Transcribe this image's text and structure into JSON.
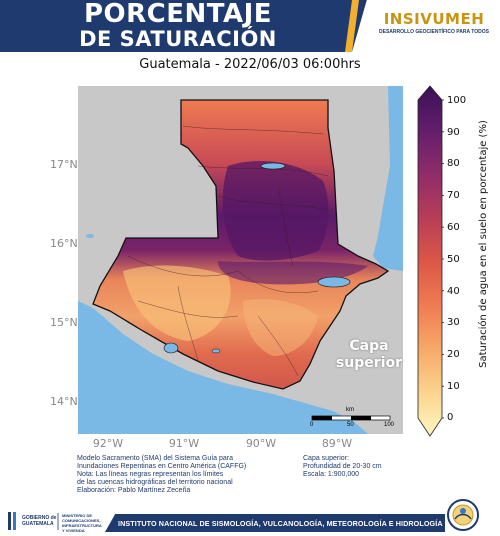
{
  "header": {
    "title_line1": "PORCENTAJE",
    "title_line2": "DE SATURACIÓN",
    "logo_name": "INSIVUMEH",
    "logo_tagline": "DESARROLLO GEOCIENTÍFICO PARA TODOS"
  },
  "map": {
    "title": "Guatemala - 2022/06/03  06:00hrs",
    "layer_label_line1": "Capa",
    "layer_label_line2": "superior",
    "lat_labels": [
      "17°N",
      "16°N",
      "15°N",
      "14°N"
    ],
    "lon_labels": [
      "92°W",
      "91°W",
      "90°W",
      "89°W"
    ],
    "scale_bar": {
      "unit": "km",
      "ticks": [
        "0",
        "50",
        "100"
      ]
    },
    "colors": {
      "land_outside": "#c8c8c8",
      "water": "#7ab8e6",
      "border": "#111111"
    }
  },
  "colorbar": {
    "label": "Saturación de agua en el suelo en porcentaje (%)",
    "ticks": [
      "100",
      "90",
      "80",
      "70",
      "60",
      "50",
      "40",
      "30",
      "20",
      "10",
      "0"
    ],
    "range": [
      0,
      100
    ],
    "colormap": [
      "#fdf7c2",
      "#fbd38e",
      "#f7a868",
      "#ef7b52",
      "#db5647",
      "#b73d57",
      "#8f2c6a",
      "#631d6b",
      "#3b1158"
    ]
  },
  "footnotes": {
    "left": [
      "Modelo Sacramento (SMA) del Sistema Guía para",
      "Inundaciones Repentinas en Centro América (CAFFG)",
      "Nota: Las líneas negras representan los límites",
      "de las cuencas hidrográficas del territorio nacional",
      "Elaboración: Pablo Martínez Zeceña"
    ],
    "right": [
      "Capa superior:",
      "Profundidad de 20-30 cm",
      "Escala: 1:900,000"
    ]
  },
  "footer": {
    "gobierno_line1": "GOBIERNO de",
    "gobierno_line2": "GUATEMALA",
    "ministerio_lines": [
      "MINISTERIO DE",
      "COMUNICACIONES,",
      "INFRAESTRUCTURA",
      "Y VIVIENDA"
    ],
    "institute": "INSTITUTO NACIONAL DE SISMOLOGÍA, VULCANOLOGÍA, METEOROLOGÍA E HIDROLOGÍA"
  }
}
